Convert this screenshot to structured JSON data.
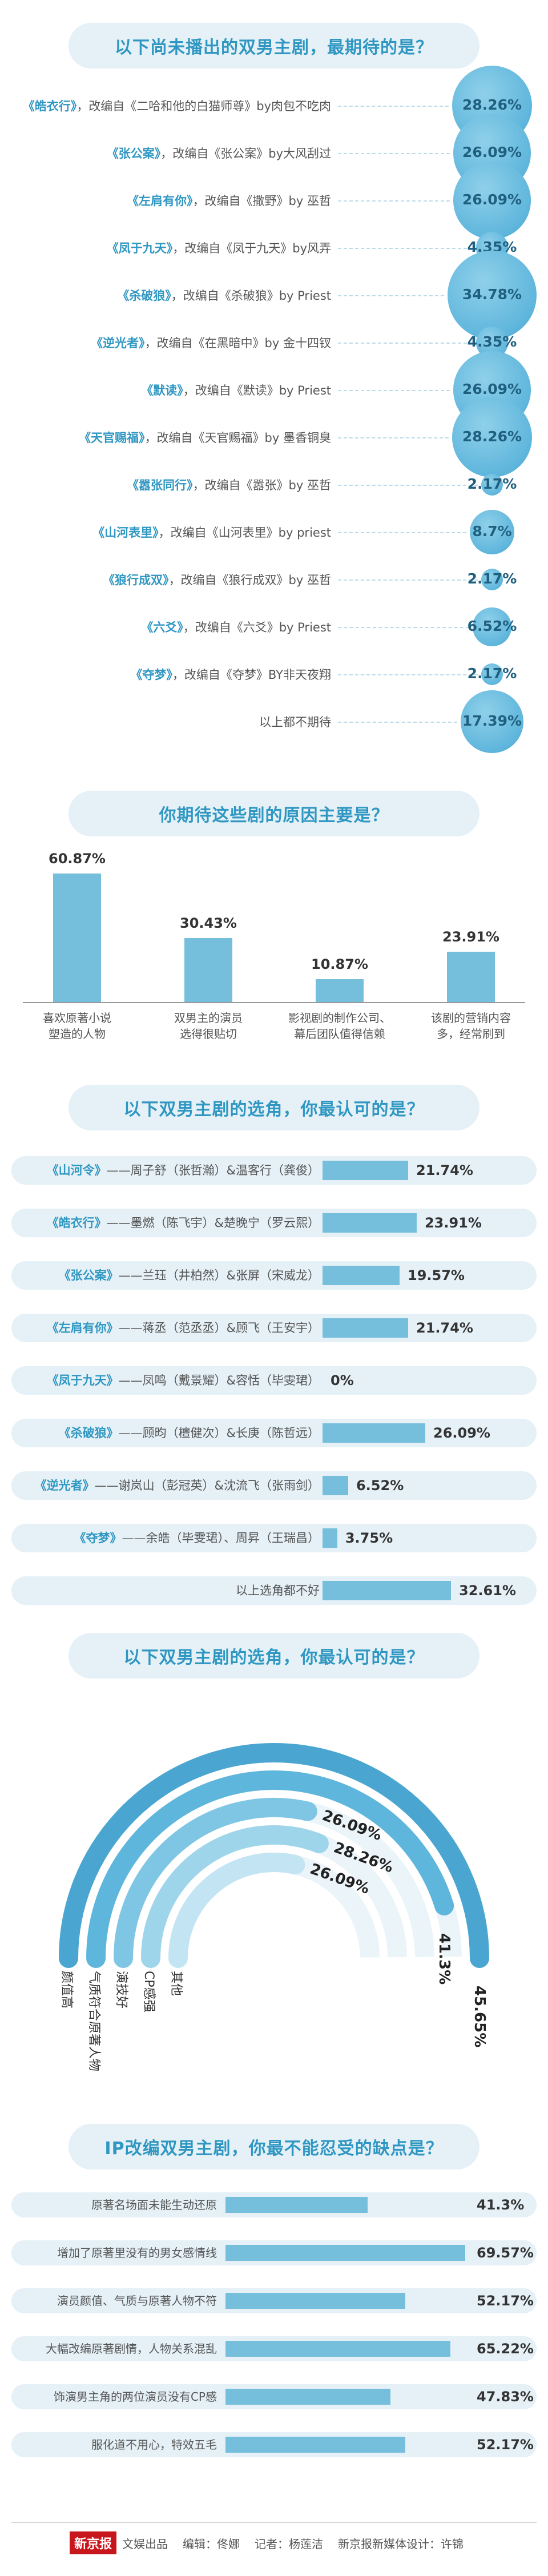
{
  "chart_data": [
    {
      "type": "bubble",
      "title": "以下尚未播出的双男主剧，最期待的是？",
      "items": [
        {
          "title": "《皓衣行》",
          "source": "，改编自《二哈和他的白猫师尊》by肉包不吃肉",
          "value": 28.26,
          "label": "28.26%"
        },
        {
          "title": "《张公案》",
          "source": "，改编自《张公案》by大风刮过",
          "value": 26.09,
          "label": "26.09%"
        },
        {
          "title": "《左肩有你》",
          "source": "，改编自《撒野》by 巫哲",
          "value": 26.09,
          "label": "26.09%"
        },
        {
          "title": "《凤于九天》",
          "source": "，改编自《凤于九天》by风弄",
          "value": 4.35,
          "label": "4.35%"
        },
        {
          "title": "《杀破狼》",
          "source": "，改编自《杀破狼》by Priest",
          "value": 34.78,
          "label": "34.78%"
        },
        {
          "title": "《逆光者》",
          "source": "，改编自《在黑暗中》by 金十四钗",
          "value": 4.35,
          "label": "4.35%"
        },
        {
          "title": "《默读》",
          "source": "，改编自《默读》by Priest",
          "value": 26.09,
          "label": "26.09%"
        },
        {
          "title": "《天官赐福》",
          "source": "，改编自《天官赐福》by 墨香铜臭",
          "value": 28.26,
          "label": "28.26%"
        },
        {
          "title": "《嚣张同行》",
          "source": "，改编自《嚣张》by 巫哲",
          "value": 2.17,
          "label": "2.17%"
        },
        {
          "title": "《山河表里》",
          "source": "，改编自《山河表里》by priest",
          "value": 8.7,
          "label": "8.7%"
        },
        {
          "title": "《狼行成双》",
          "source": "，改编自《狼行成双》by 巫哲",
          "value": 2.17,
          "label": "2.17%"
        },
        {
          "title": "《六爻》",
          "source": "，改编自《六爻》by Priest",
          "value": 6.52,
          "label": "6.52%"
        },
        {
          "title": "《夺梦》",
          "source": "，改编自《夺梦》BY非天夜翔",
          "value": 2.17,
          "label": "2.17%"
        },
        {
          "title": "",
          "source": "以上都不期待",
          "value": 17.39,
          "label": "17.39%"
        }
      ]
    },
    {
      "type": "bar",
      "title": "你期待这些剧的原因主要是？",
      "categories": [
        [
          "喜欢原著小说",
          "塑造的人物"
        ],
        [
          "双男主的演员",
          "选得很贴切"
        ],
        [
          "影视剧的制作公司、",
          "幕后团队值得信赖"
        ],
        [
          "该剧的营销内容",
          "多，经常刷到"
        ]
      ],
      "values": [
        60.87,
        30.43,
        10.87,
        23.91
      ],
      "labels": [
        "60.87%",
        "30.43%",
        "10.87%",
        "23.91%"
      ],
      "ylim": [
        0,
        60.87
      ]
    },
    {
      "type": "bar",
      "orientation": "horizontal",
      "title": "以下双男主剧的选角，你最认可的是？",
      "items": [
        {
          "title": "《山河令》",
          "cast": "——周子舒（张哲瀚）&温客行（龚俊）",
          "value": 21.74,
          "label": "21.74%"
        },
        {
          "title": "《皓衣行》",
          "cast": "——墨燃（陈飞宇）&楚晚宁（罗云熙）",
          "value": 23.91,
          "label": "23.91%"
        },
        {
          "title": "《张公案》",
          "cast": "——兰珏（井柏然）&张屏（宋威龙）",
          "value": 19.57,
          "label": "19.57%"
        },
        {
          "title": "《左肩有你》",
          "cast": "——蒋丞（范丞丞）&顾飞（王安宇）",
          "value": 21.74,
          "label": "21.74%"
        },
        {
          "title": "《凤于九天》",
          "cast": "——凤鸣（戴景耀）&容恬（毕雯珺）",
          "value": 0,
          "label": "0%"
        },
        {
          "title": "《杀破狼》",
          "cast": "——顾昀（檀健次）&长庚（陈哲远）",
          "value": 26.09,
          "label": "26.09%"
        },
        {
          "title": "《逆光者》",
          "cast": "——谢岚山（彭冠英）&沈流飞（张雨剑）",
          "value": 6.52,
          "label": "6.52%"
        },
        {
          "title": "《夺梦》",
          "cast": "——余皓（毕雯珺）、周昇（王瑞昌）",
          "value": 3.75,
          "label": "3.75%"
        },
        {
          "title": "",
          "cast": "以上选角都不好",
          "value": 32.61,
          "label": "32.61%"
        }
      ],
      "xlim": [
        0,
        32.61
      ]
    },
    {
      "type": "radial-bar",
      "title": "以下双男主剧的选角，你最认可的是？",
      "categories": [
        "颜值高",
        "气质符合原著人物",
        "演技好",
        "CP感强",
        "其他"
      ],
      "values": [
        45.65,
        41.3,
        26.09,
        28.26,
        26.09
      ],
      "labels": [
        "45.65%",
        "41.3%",
        "26.09%",
        "28.26%",
        "26.09%"
      ]
    },
    {
      "type": "bar",
      "orientation": "horizontal",
      "title": "IP改编双男主剧，你最不能忍受的缺点是？",
      "categories": [
        "原著名场面未能生动还原",
        "增加了原著里没有的男女感情线",
        "演员颜值、气质与原著人物不符",
        "大幅改编原著剧情，人物关系混乱",
        "饰演男主角的两位演员没有CP感",
        "服化道不用心，特效五毛"
      ],
      "values": [
        41.3,
        69.57,
        52.17,
        65.22,
        47.83,
        52.17
      ],
      "labels": [
        "41.3%",
        "69.57%",
        "52.17%",
        "65.22%",
        "47.83%",
        "52.17%"
      ],
      "xlim": [
        0,
        69.57
      ]
    }
  ],
  "footer": {
    "brand": "新京报",
    "dept": "文娱出品",
    "editor": "编辑：佟娜",
    "reporter": "记者：杨莲洁",
    "designer": "新京报新媒体设计：许锦"
  },
  "colors": {
    "accent": "#2f97c2",
    "bar": "#76bfdc",
    "band": "#e5f1f7",
    "arcs": [
      "#4aa6d1",
      "#5fb6dc",
      "#7fc6e4",
      "#9fd5eb",
      "#c3e5f3"
    ]
  }
}
